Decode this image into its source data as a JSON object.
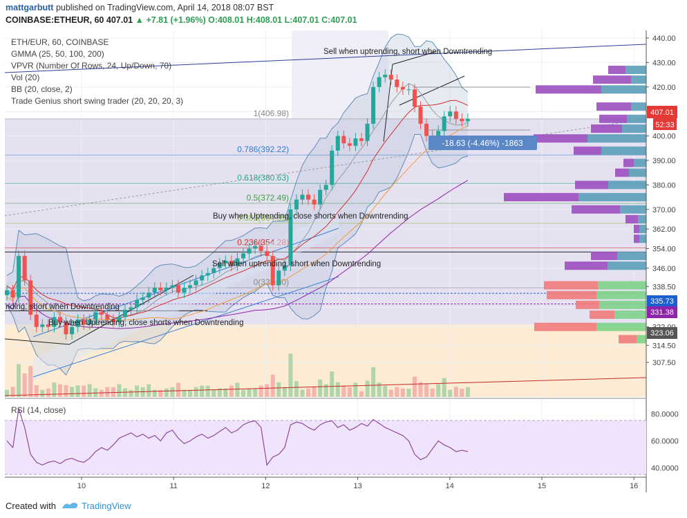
{
  "header": {
    "author": "mattgarbutt",
    "published": "published on TradingView.com, April 14, 2018 08:07 BST",
    "symbol": "COINBASE:ETHEUR, 60",
    "price": "407.01",
    "change": "▲ +7.81 (+1.96%)",
    "open": "O:408.01",
    "high": "H:408.01",
    "low": "L:407.01",
    "close": "C:407.01"
  },
  "legend": {
    "symbol": "ETH/EUR, 60, COINBASE",
    "gmma": "GMMA (25, 50, 100, 200)",
    "vpvr": "VPVR (Number Of Rows, 24, Up/Down, 70)",
    "vol": "Vol (20)",
    "bb": "BB (20, close, 2)",
    "tgs": "Trade Genius short swing trader (20, 20, 20, 3)"
  },
  "rsi_label": "RSI (14, close)",
  "annotations": {
    "sell_top": "Sell when uptrending, short when Downtrending",
    "buy_mid": "Buy when Uptrending, close shorts when Downtrending",
    "sell_mid": "Sell when uptrending, short when Downtrending",
    "left_cut": "nding, short when Downtrending",
    "buy_low": "Buy when Uptrending, close shorts when Downtrending",
    "measure": "-18.63 (-4.46%) -1863"
  },
  "price_labels": {
    "current": "407.01",
    "countdown": "52:33",
    "blue_line": "335.73",
    "purple_line": "331.38",
    "grey_line": "323.06"
  },
  "footer": {
    "created": "Created with",
    "brand": "TradingView"
  },
  "colors": {
    "fib_786": "#2b7cd3",
    "fib_618": "#2aa58b",
    "fib_5": "#43a047",
    "fib_382": "#8bc34a",
    "fib_236": "#d32f2f",
    "up_candle": "#26a69a",
    "down_candle": "#ef5350",
    "price_tag": "#e53935",
    "blue_tag": "#1e5fd0",
    "purple_tag": "#8e24aa",
    "grey_tag": "#555555"
  },
  "chart_data": {
    "type": "candlestick",
    "title": "ETH/EUR, 60, COINBASE",
    "x_ticks": [
      "10",
      "11",
      "12",
      "13",
      "14",
      "15",
      "16"
    ],
    "y_ticks": [
      "440.00",
      "430.00",
      "420.00",
      "410.00",
      "400.00",
      "390.00",
      "380.00",
      "370.00",
      "362.00",
      "354.00",
      "346.00",
      "338.50",
      "330.00",
      "322.00",
      "314.50",
      "307.50"
    ],
    "y_range": [
      302,
      445
    ],
    "fib_levels": [
      {
        "label": "1(406.98)",
        "value": 406.98
      },
      {
        "label": "0.786(392.22)",
        "value": 392.22
      },
      {
        "label": "0.618(380.63)",
        "value": 380.63
      },
      {
        "label": "0.5(372.49)",
        "value": 372.49
      },
      {
        "label": "0.382(364.35)",
        "value": 364.35
      },
      {
        "label": "0.236(354.28)",
        "value": 354.28
      },
      {
        "label": "0(338.00)",
        "value": 338.0
      }
    ],
    "closes": [
      337,
      334,
      351,
      341,
      327,
      322,
      323,
      322,
      326,
      324,
      319,
      322,
      325,
      323,
      325,
      328,
      327,
      325,
      324,
      326,
      329,
      330,
      333,
      334,
      336,
      338,
      337,
      338,
      339,
      336,
      338,
      339,
      341,
      343,
      344,
      346,
      348,
      349,
      347,
      350,
      352,
      354,
      355,
      353,
      351,
      339,
      345,
      347,
      370,
      374,
      376,
      374,
      372,
      378,
      380,
      394,
      400,
      397,
      396,
      399,
      398,
      405,
      420,
      424,
      425,
      423,
      420,
      419,
      419,
      412,
      405,
      400,
      399,
      402,
      408,
      410,
      407,
      406,
      407
    ],
    "rsi": {
      "label": "RSI (14, close)",
      "ticks": [
        "80.0000",
        "60.0000",
        "40.0000"
      ],
      "range": [
        30,
        85
      ],
      "values": [
        60,
        55,
        84,
        70,
        50,
        44,
        42,
        44,
        45,
        43,
        46,
        47,
        45,
        44,
        47,
        52,
        55,
        53,
        57,
        62,
        64,
        66,
        63,
        65,
        62,
        64,
        60,
        66,
        68,
        62,
        58,
        60,
        63,
        65,
        62,
        64,
        67,
        70,
        66,
        68,
        72,
        74,
        75,
        70,
        42,
        48,
        50,
        55,
        72,
        74,
        73,
        70,
        68,
        72,
        74,
        75,
        70,
        72,
        68,
        70,
        73,
        71,
        76,
        73,
        70,
        68,
        66,
        64,
        60,
        50,
        46,
        48,
        54,
        60,
        57,
        55,
        52,
        53,
        52
      ]
    },
    "vpvr": [
      {
        "price": 427,
        "up": 30,
        "down": 25
      },
      {
        "price": 423,
        "up": 22,
        "down": 55
      },
      {
        "price": 419,
        "up": 65,
        "down": 95
      },
      {
        "price": 412,
        "up": 22,
        "down": 50
      },
      {
        "price": 407,
        "up": 28,
        "down": 40
      },
      {
        "price": 403,
        "up": 35,
        "down": 45
      },
      {
        "price": 399,
        "up": 85,
        "down": 78
      },
      {
        "price": 394,
        "up": 65,
        "down": 40
      },
      {
        "price": 389,
        "up": 18,
        "down": 15
      },
      {
        "price": 385,
        "up": 25,
        "down": 20
      },
      {
        "price": 380,
        "up": 55,
        "down": 48
      },
      {
        "price": 375,
        "up": 98,
        "down": 108
      },
      {
        "price": 370,
        "up": 38,
        "down": 70
      },
      {
        "price": 366,
        "up": 12,
        "down": 18
      },
      {
        "price": 362,
        "up": 10,
        "down": 8
      },
      {
        "price": 358,
        "up": 10,
        "down": 8
      },
      {
        "price": 351,
        "up": 42,
        "down": 38
      },
      {
        "price": 347,
        "up": 56,
        "down": 62
      },
      {
        "price": 339,
        "up": 70,
        "down": 78
      },
      {
        "price": 335,
        "up": 72,
        "down": 72
      },
      {
        "price": 331,
        "up": 68,
        "down": 34
      },
      {
        "price": 327,
        "up": 46,
        "down": 36
      },
      {
        "price": 322,
        "up": 72,
        "down": 90
      },
      {
        "price": 317,
        "up": 14,
        "down": 26
      }
    ]
  }
}
